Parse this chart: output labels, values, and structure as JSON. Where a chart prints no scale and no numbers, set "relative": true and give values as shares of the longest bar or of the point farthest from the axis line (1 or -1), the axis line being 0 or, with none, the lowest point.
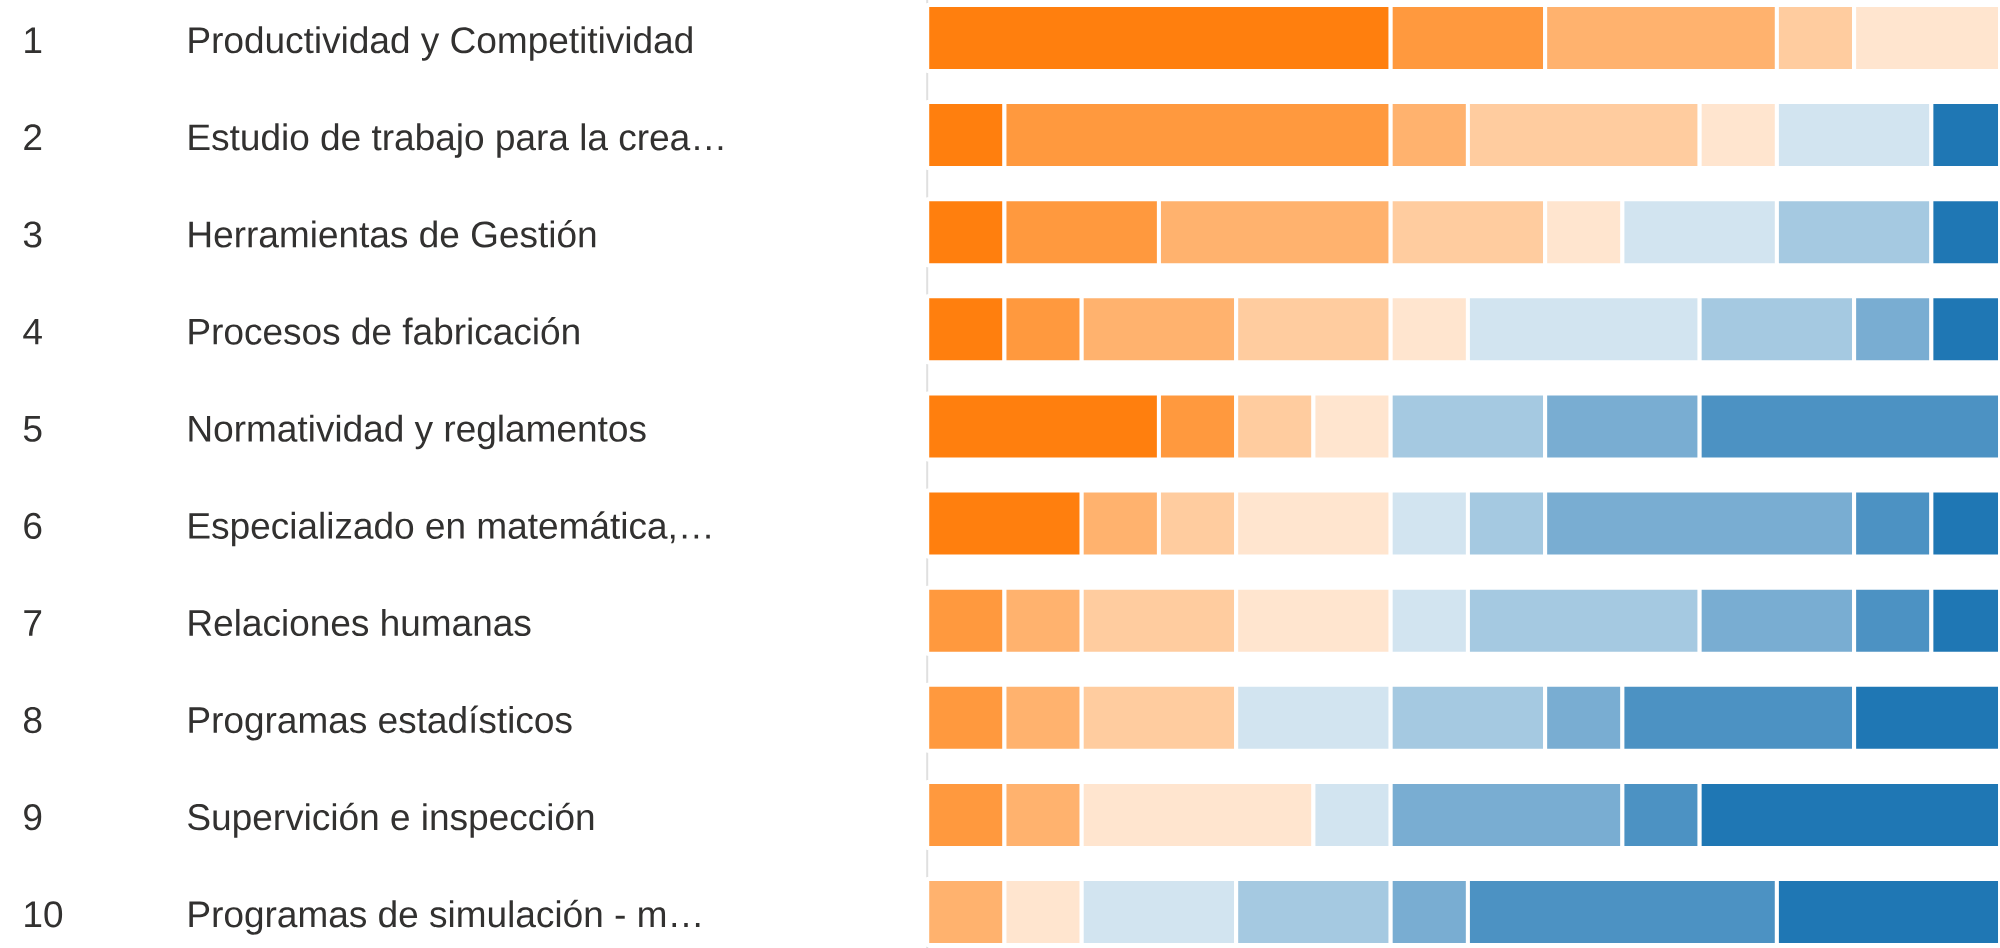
{
  "chart_data": {
    "type": "bar",
    "orientation": "horizontal",
    "stacked": true,
    "relative": true,
    "categories": [
      "Productividad y Competitividad",
      "Estudio de trabajo para la crea…",
      "Herramientas de Gestión",
      "Procesos de fabricación",
      "Normatividad y reglamentos",
      "Especializado en matemática,…",
      "Relaciones humanas",
      "Programas estadísticos",
      "Supervición e inspección",
      "Programas de simulación - m…"
    ],
    "annotations": [
      "1",
      "2",
      "3",
      "4",
      "5",
      "6",
      "7",
      "8",
      "9",
      "10"
    ],
    "series": [
      {
        "color": "#ff7f0e",
        "values": [
          0.432,
          0.072,
          0.072,
          0.072,
          0.216,
          0.144,
          0,
          0,
          0,
          0
        ]
      },
      {
        "color": "#ff993e",
        "values": [
          0.144,
          0.36,
          0.144,
          0.072,
          0.072,
          0,
          0.072,
          0.072,
          0.072,
          0
        ]
      },
      {
        "color": "#ffb26e",
        "values": [
          0.216,
          0.072,
          0.216,
          0.144,
          0,
          0.072,
          0.072,
          0.072,
          0.072,
          0.072
        ]
      },
      {
        "color": "#ffcc9f",
        "values": [
          0.072,
          0.216,
          0.144,
          0.144,
          0.072,
          0.072,
          0.144,
          0.144,
          0,
          0
        ]
      },
      {
        "color": "#ffe5cf",
        "values": [
          0.136,
          0.072,
          0.072,
          0.072,
          0.072,
          0.144,
          0.144,
          0,
          0.216,
          0.072
        ]
      },
      {
        "color": "#d2e4f0",
        "values": [
          null,
          0.144,
          0.144,
          0.216,
          0,
          0.072,
          0.072,
          0.144,
          0.072,
          0.144
        ]
      },
      {
        "color": "#a5c9e1",
        "values": [
          null,
          0,
          0.144,
          0.144,
          0.144,
          0.072,
          0.216,
          0.144,
          0,
          0.144
        ]
      },
      {
        "color": "#79add2",
        "values": [
          null,
          0,
          0,
          0.072,
          0.144,
          0.288,
          0.144,
          0.072,
          0.216,
          0.072
        ]
      },
      {
        "color": "#4c92c3",
        "values": [
          null,
          0,
          0,
          0,
          0.28,
          0.072,
          0.072,
          0.216,
          0.072,
          0.288
        ]
      },
      {
        "color": "#1f77b4",
        "values": [
          null,
          0.064,
          0.064,
          0.064,
          null,
          0.064,
          0.064,
          0.136,
          0.28,
          0.208
        ]
      }
    ]
  }
}
